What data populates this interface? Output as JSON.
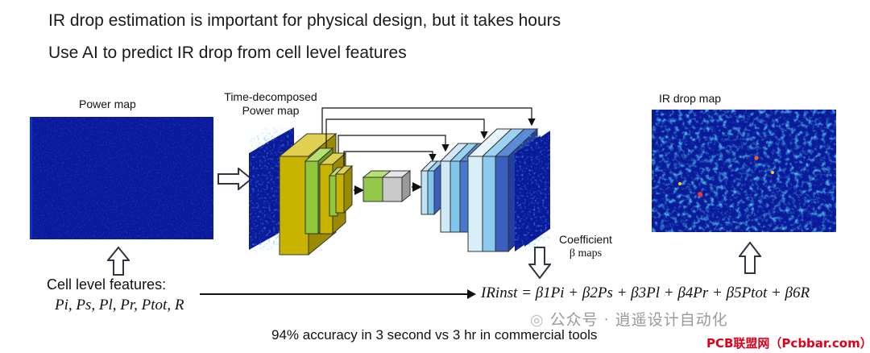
{
  "headline_1": "IR drop estimation is important for physical design, but it takes hours",
  "headline_2": "Use AI to predict IR drop from cell level features",
  "power_map_label": "Power map",
  "time_decomposed_label_1": "Time-decomposed",
  "time_decomposed_label_2": "Power map",
  "ir_drop_map_label": "IR drop map",
  "coefficient_label_1": "Coefficient",
  "coefficient_label_2": "β maps",
  "cell_features_title": "Cell level features:",
  "cell_features_list": "Pi, Ps, Pl, Pr, Ptot, R",
  "equation": "IRinst = β1Pi + β2Ps + β3Pl + β4Pr + β5Ptot + β6R",
  "accuracy_text": "94% accuracy in 3 second vs 3 hr in commercial tools",
  "watermark_text": "公众号 · 逍遥设计自动化",
  "badge_text": "PCB联盟网（Pcbbar.com）",
  "colors": {
    "map_dark_blue": "#0a1a9a",
    "map_bright": "#2ad0ff",
    "encoder_yellow": "#c8b400",
    "encoder_green": "#8fc83a",
    "bottleneck_green": "#93c94a",
    "bottleneck_gray": "#c9c9c9",
    "decoder_light": "#cfe9f7",
    "decoder_mid": "#7fc5ec",
    "decoder_dark": "#3a5fbf",
    "badge_red": "#e0001b"
  }
}
